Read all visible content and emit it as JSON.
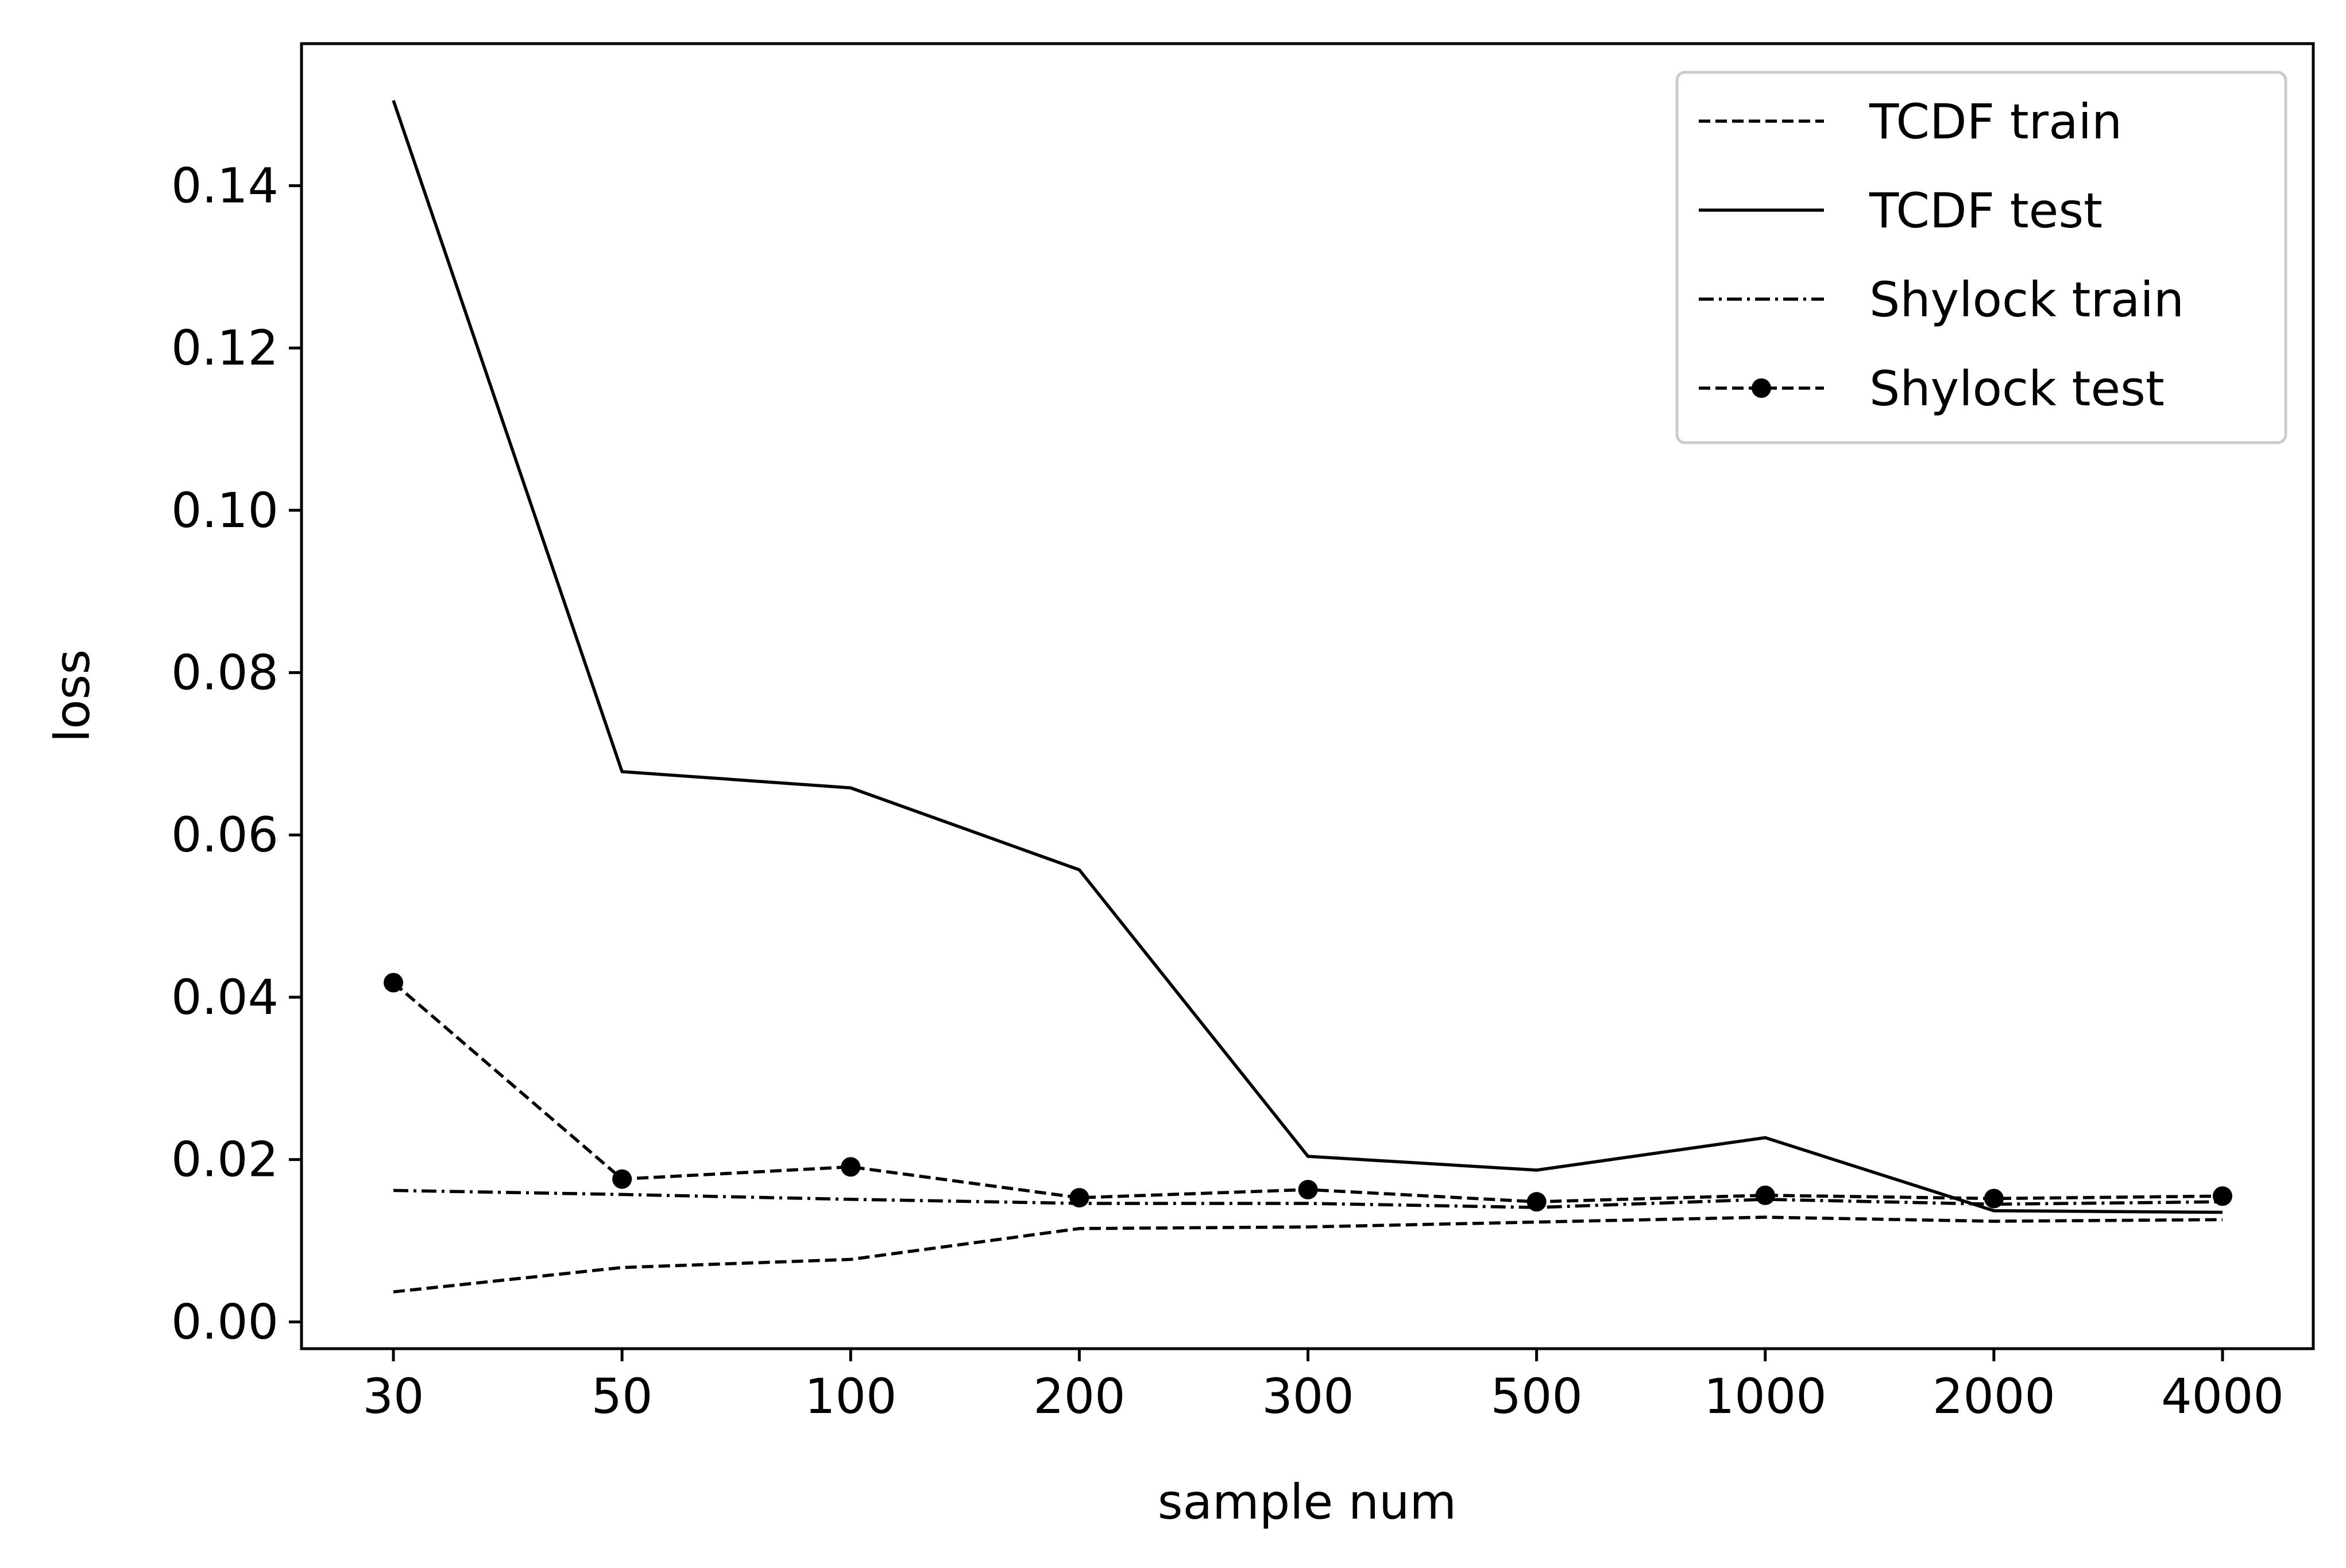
{
  "chart_data": {
    "type": "line",
    "title": "",
    "xlabel": "sample num",
    "ylabel": "loss",
    "categories": [
      "30",
      "50",
      "100",
      "200",
      "300",
      "500",
      "1000",
      "2000",
      "4000"
    ],
    "ylim": [
      -0.0033,
      0.1575
    ],
    "yticks": [
      "0.00",
      "0.02",
      "0.04",
      "0.06",
      "0.08",
      "0.10",
      "0.12",
      "0.14"
    ],
    "grid": false,
    "legend_position": "top-right",
    "series": [
      {
        "name": "TCDF train",
        "style": "dashed",
        "marker": "none",
        "color": "#000000",
        "values": [
          0.0037,
          0.0067,
          0.0077,
          0.0115,
          0.0117,
          0.0123,
          0.0129,
          0.0124,
          0.0126
        ]
      },
      {
        "name": "TCDF test",
        "style": "solid",
        "marker": "none",
        "color": "#000000",
        "values": [
          0.1505,
          0.0678,
          0.0658,
          0.0557,
          0.0204,
          0.0187,
          0.0227,
          0.0137,
          0.0135
        ]
      },
      {
        "name": "Shylock train",
        "style": "dashdot",
        "marker": "none",
        "color": "#000000",
        "values": [
          0.0162,
          0.0157,
          0.0151,
          0.0146,
          0.0146,
          0.0141,
          0.0151,
          0.0145,
          0.0148
        ]
      },
      {
        "name": "Shylock test",
        "style": "dashed",
        "marker": "circle",
        "color": "#000000",
        "values": [
          0.0418,
          0.0176,
          0.0191,
          0.0153,
          0.0163,
          0.0148,
          0.0156,
          0.0152,
          0.0155
        ]
      }
    ]
  }
}
